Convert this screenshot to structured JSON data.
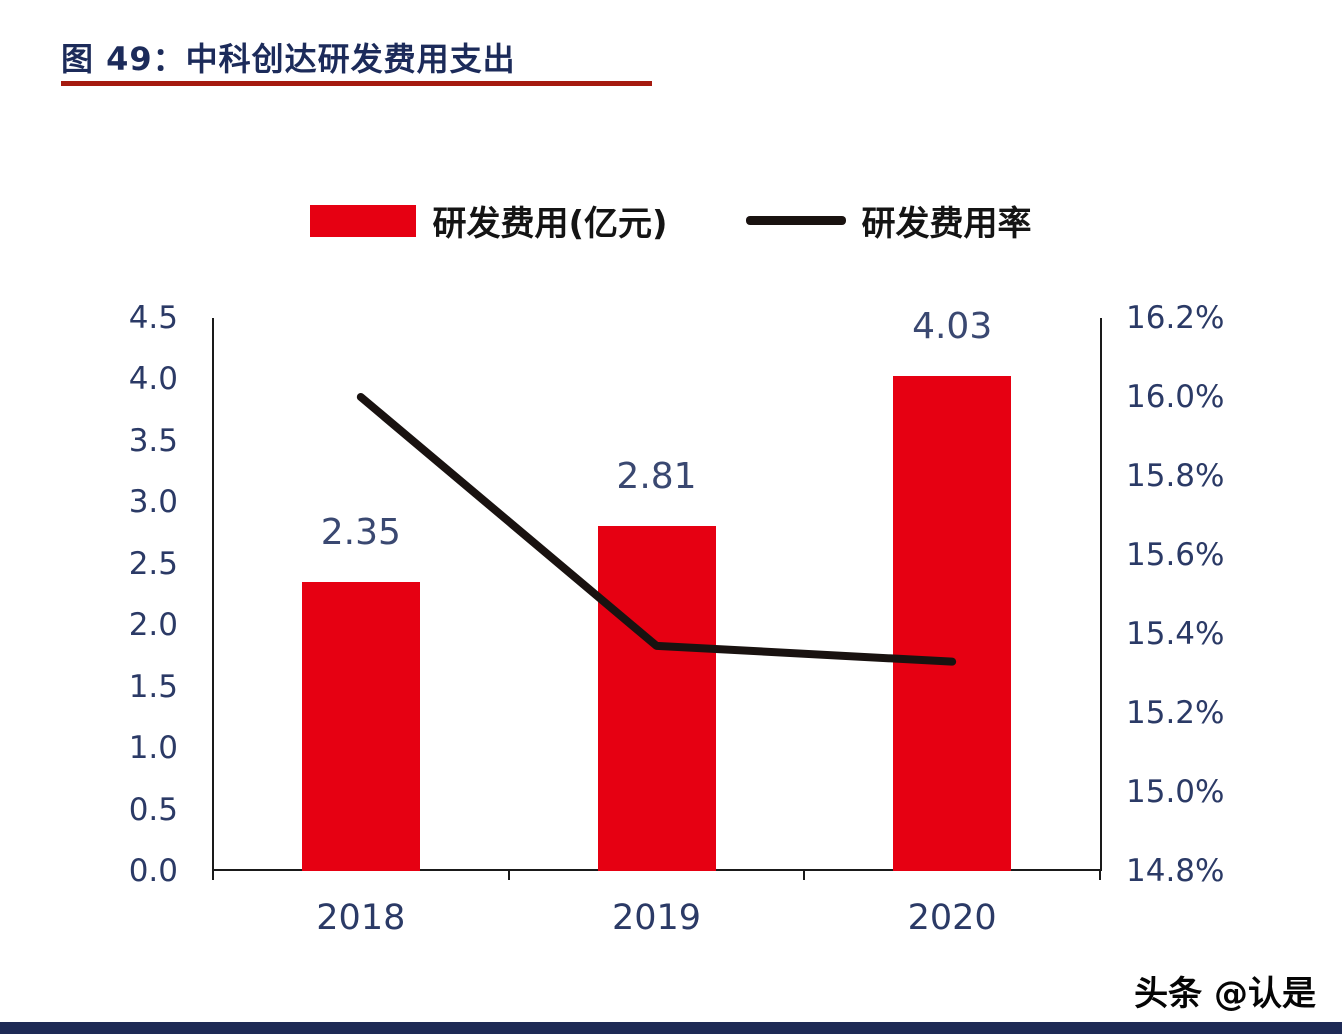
{
  "page": {
    "title": "图 49：中科创达研发费用支出",
    "watermark": "头条 @认是"
  },
  "chart_data": {
    "type": "bar+line",
    "title": "图 49：中科创达研发费用支出",
    "categories": [
      "2018",
      "2019",
      "2020"
    ],
    "series": [
      {
        "name": "研发费用(亿元)",
        "type": "bar",
        "axis": "left",
        "values": [
          2.35,
          2.81,
          4.03
        ],
        "color": "#e60012"
      },
      {
        "name": "研发费用率",
        "type": "line",
        "axis": "right",
        "values": [
          16.0,
          15.37,
          15.33
        ],
        "unit": "%",
        "color": "#191210"
      }
    ],
    "bar_value_labels": [
      "2.35",
      "2.81",
      "4.03"
    ],
    "left_axis": {
      "min": 0.0,
      "max": 4.5,
      "step": 0.5,
      "tick_labels": [
        "0.0",
        "0.5",
        "1.0",
        "1.5",
        "2.0",
        "2.5",
        "3.0",
        "3.5",
        "4.0",
        "4.5"
      ]
    },
    "right_axis": {
      "min": 14.8,
      "max": 16.2,
      "step": 0.2,
      "tick_labels": [
        "14.8%",
        "15.0%",
        "15.2%",
        "15.4%",
        "15.6%",
        "15.8%",
        "16.0%",
        "16.2%"
      ]
    },
    "xlabel": "",
    "ylabel_left": "",
    "ylabel_right": "",
    "grid": false,
    "legend_position": "top"
  },
  "colors": {
    "bar_red": "#e60012",
    "line_black": "#191210",
    "underline_red": "#a51a0f",
    "title_navy": "#1c2b5a",
    "axis_text_navy": "#2b3a66",
    "footer_navy": "#1e2a55"
  }
}
